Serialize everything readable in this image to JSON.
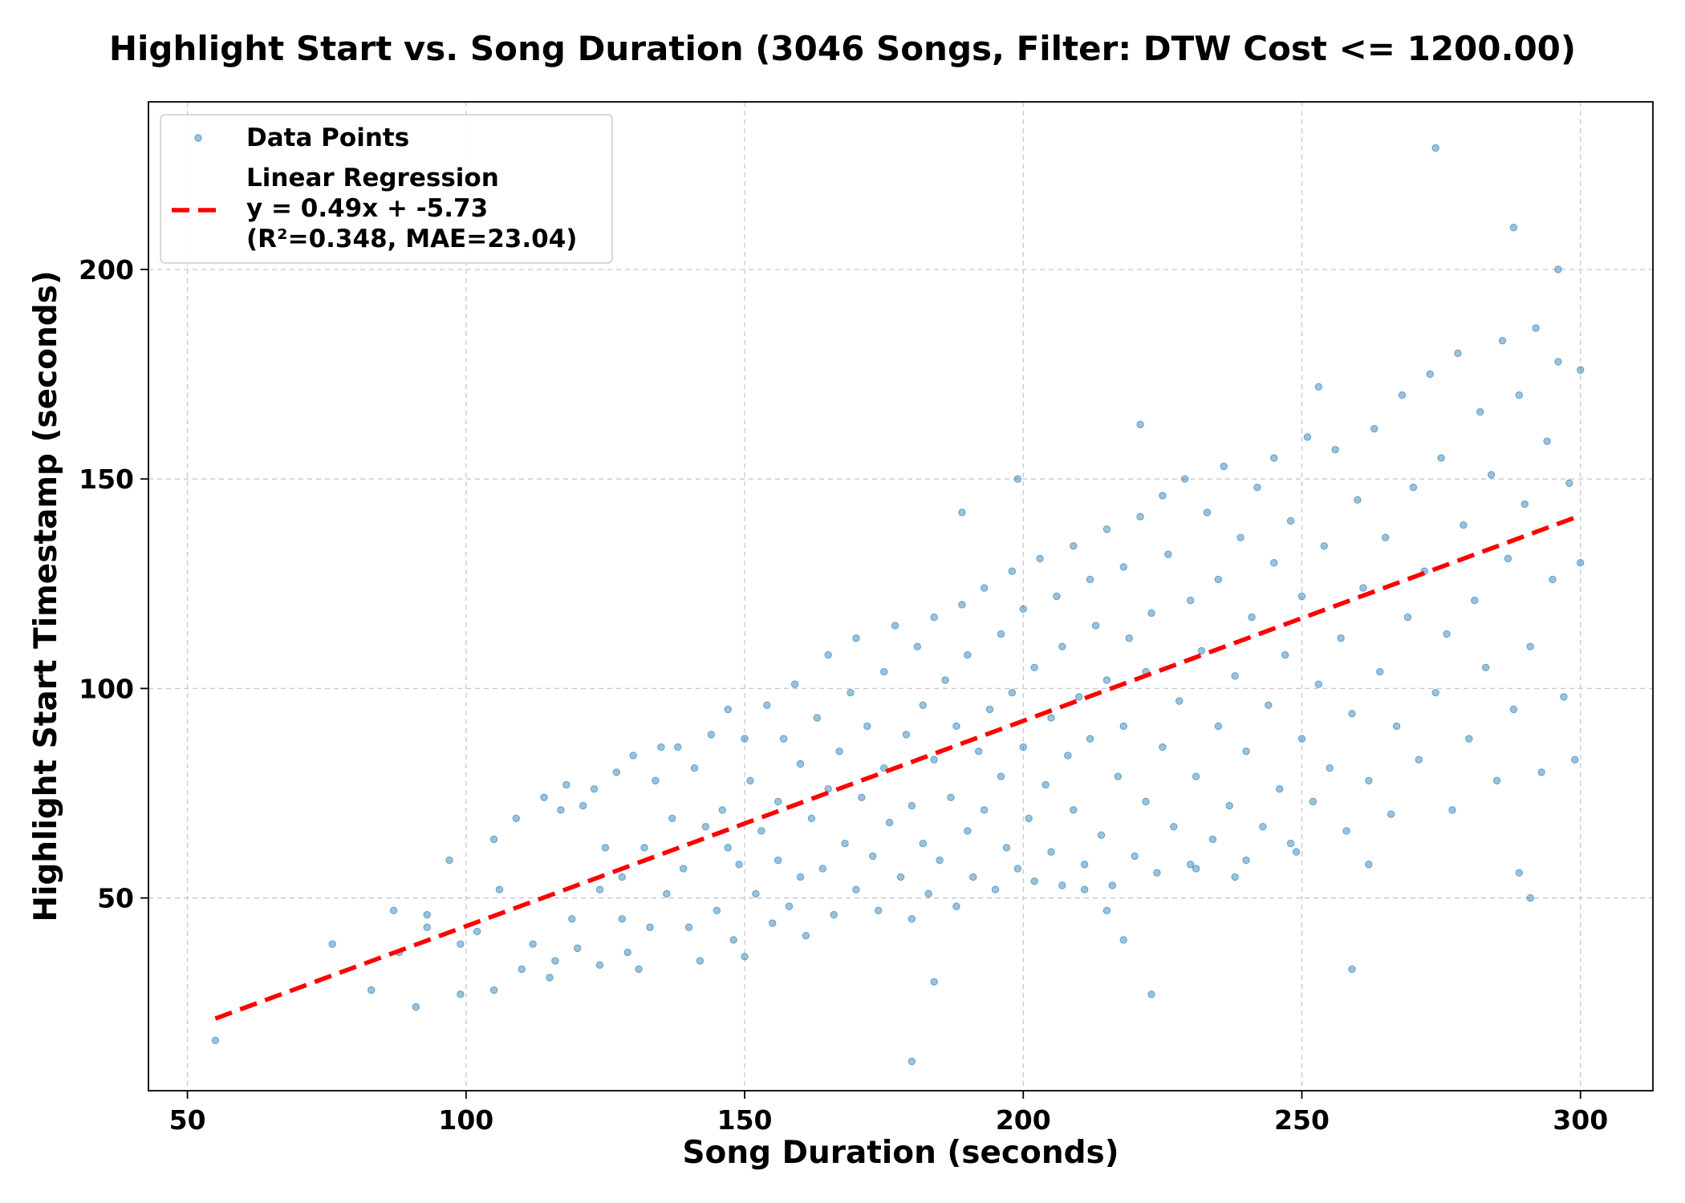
{
  "chart_data": {
    "type": "scatter",
    "title": "Highlight Start vs. Song Duration (3046 Songs, Filter: DTW Cost <= 1200.00)",
    "xlabel": "Song Duration (seconds)",
    "ylabel": "Highlight Start Timestamp (seconds)",
    "xlim": [
      43,
      313
    ],
    "ylim": [
      4,
      240
    ],
    "xticks": [
      50,
      100,
      150,
      200,
      250,
      300
    ],
    "yticks": [
      50,
      100,
      150,
      200
    ],
    "grid": true,
    "legend_position": "top-left",
    "colors": {
      "points": "#1f77b4",
      "regression": "#ff0000"
    },
    "legend": [
      {
        "label": "Data Points"
      },
      {
        "label": "Linear Regression",
        "extra_lines": [
          "y = 0.49x + -5.73",
          "(R²=0.348, MAE=23.04)"
        ]
      }
    ],
    "series": [
      {
        "name": "Data Points",
        "points": [
          [
            55,
            16
          ],
          [
            76,
            39
          ],
          [
            83,
            28
          ],
          [
            87,
            47
          ],
          [
            88,
            37
          ],
          [
            91,
            24
          ],
          [
            93,
            46
          ],
          [
            93,
            43
          ],
          [
            97,
            59
          ],
          [
            99,
            27
          ],
          [
            99,
            39
          ],
          [
            102,
            42
          ],
          [
            105,
            28
          ],
          [
            105,
            64
          ],
          [
            106,
            52
          ],
          [
            109,
            69
          ],
          [
            110,
            33
          ],
          [
            112,
            39
          ],
          [
            114,
            74
          ],
          [
            115,
            31
          ],
          [
            116,
            35
          ],
          [
            117,
            71
          ],
          [
            118,
            77
          ],
          [
            119,
            45
          ],
          [
            120,
            38
          ],
          [
            121,
            72
          ],
          [
            123,
            76
          ],
          [
            124,
            52
          ],
          [
            124,
            34
          ],
          [
            125,
            62
          ],
          [
            127,
            80
          ],
          [
            128,
            45
          ],
          [
            128,
            55
          ],
          [
            129,
            37
          ],
          [
            130,
            84
          ],
          [
            131,
            33
          ],
          [
            132,
            62
          ],
          [
            133,
            43
          ],
          [
            134,
            78
          ],
          [
            135,
            86
          ],
          [
            136,
            51
          ],
          [
            137,
            69
          ],
          [
            138,
            86
          ],
          [
            139,
            57
          ],
          [
            140,
            43
          ],
          [
            141,
            81
          ],
          [
            142,
            35
          ],
          [
            143,
            67
          ],
          [
            144,
            89
          ],
          [
            145,
            47
          ],
          [
            146,
            71
          ],
          [
            147,
            62
          ],
          [
            147,
            95
          ],
          [
            148,
            40
          ],
          [
            149,
            58
          ],
          [
            150,
            88
          ],
          [
            150,
            36
          ],
          [
            151,
            78
          ],
          [
            152,
            51
          ],
          [
            153,
            66
          ],
          [
            154,
            96
          ],
          [
            155,
            44
          ],
          [
            156,
            73
          ],
          [
            156,
            59
          ],
          [
            157,
            88
          ],
          [
            158,
            48
          ],
          [
            159,
            101
          ],
          [
            160,
            55
          ],
          [
            160,
            82
          ],
          [
            161,
            41
          ],
          [
            162,
            69
          ],
          [
            163,
            93
          ],
          [
            164,
            57
          ],
          [
            165,
            76
          ],
          [
            165,
            108
          ],
          [
            166,
            46
          ],
          [
            167,
            85
          ],
          [
            168,
            63
          ],
          [
            169,
            99
          ],
          [
            170,
            52
          ],
          [
            170,
            112
          ],
          [
            171,
            74
          ],
          [
            172,
            91
          ],
          [
            173,
            60
          ],
          [
            174,
            47
          ],
          [
            175,
            104
          ],
          [
            175,
            81
          ],
          [
            176,
            68
          ],
          [
            177,
            115
          ],
          [
            178,
            55
          ],
          [
            179,
            89
          ],
          [
            180,
            45
          ],
          [
            180,
            72
          ],
          [
            181,
            110
          ],
          [
            182,
            63
          ],
          [
            182,
            96
          ],
          [
            183,
            51
          ],
          [
            184,
            83
          ],
          [
            184,
            117
          ],
          [
            185,
            59
          ],
          [
            186,
            102
          ],
          [
            187,
            74
          ],
          [
            188,
            48
          ],
          [
            188,
            91
          ],
          [
            189,
            120
          ],
          [
            190,
            66
          ],
          [
            190,
            108
          ],
          [
            191,
            55
          ],
          [
            192,
            85
          ],
          [
            193,
            124
          ],
          [
            193,
            71
          ],
          [
            194,
            95
          ],
          [
            195,
            52
          ],
          [
            196,
            113
          ],
          [
            196,
            79
          ],
          [
            197,
            62
          ],
          [
            198,
            128
          ],
          [
            198,
            99
          ],
          [
            199,
            57
          ],
          [
            200,
            86
          ],
          [
            200,
            119
          ],
          [
            201,
            69
          ],
          [
            202,
            105
          ],
          [
            202,
            54
          ],
          [
            203,
            131
          ],
          [
            204,
            77
          ],
          [
            205,
            93
          ],
          [
            205,
            61
          ],
          [
            206,
            122
          ],
          [
            207,
            110
          ],
          [
            207,
            53
          ],
          [
            208,
            84
          ],
          [
            209,
            134
          ],
          [
            209,
            71
          ],
          [
            210,
            98
          ],
          [
            211,
            58
          ],
          [
            212,
            126
          ],
          [
            212,
            88
          ],
          [
            213,
            115
          ],
          [
            214,
            65
          ],
          [
            215,
            138
          ],
          [
            215,
            102
          ],
          [
            216,
            53
          ],
          [
            217,
            79
          ],
          [
            218,
            129
          ],
          [
            218,
            91
          ],
          [
            219,
            112
          ],
          [
            220,
            60
          ],
          [
            221,
            141
          ],
          [
            222,
            73
          ],
          [
            222,
            104
          ],
          [
            223,
            118
          ],
          [
            224,
            56
          ],
          [
            225,
            146
          ],
          [
            225,
            86
          ],
          [
            226,
            132
          ],
          [
            227,
            67
          ],
          [
            228,
            97
          ],
          [
            229,
            150
          ],
          [
            230,
            121
          ],
          [
            230,
            58
          ],
          [
            231,
            79
          ],
          [
            232,
            109
          ],
          [
            233,
            142
          ],
          [
            234,
            64
          ],
          [
            235,
            91
          ],
          [
            235,
            126
          ],
          [
            236,
            153
          ],
          [
            237,
            72
          ],
          [
            238,
            103
          ],
          [
            239,
            136
          ],
          [
            240,
            59
          ],
          [
            240,
            85
          ],
          [
            241,
            117
          ],
          [
            242,
            148
          ],
          [
            243,
            67
          ],
          [
            244,
            96
          ],
          [
            245,
            130
          ],
          [
            245,
            155
          ],
          [
            246,
            76
          ],
          [
            247,
            108
          ],
          [
            248,
            140
          ],
          [
            249,
            61
          ],
          [
            250,
            88
          ],
          [
            250,
            122
          ],
          [
            251,
            160
          ],
          [
            252,
            73
          ],
          [
            253,
            101
          ],
          [
            254,
            134
          ],
          [
            255,
            81
          ],
          [
            256,
            157
          ],
          [
            257,
            112
          ],
          [
            258,
            66
          ],
          [
            259,
            94
          ],
          [
            260,
            145
          ],
          [
            261,
            124
          ],
          [
            262,
            78
          ],
          [
            263,
            162
          ],
          [
            264,
            104
          ],
          [
            265,
            136
          ],
          [
            266,
            70
          ],
          [
            267,
            91
          ],
          [
            268,
            170
          ],
          [
            269,
            117
          ],
          [
            270,
            148
          ],
          [
            271,
            83
          ],
          [
            272,
            128
          ],
          [
            273,
            175
          ],
          [
            274,
            99
          ],
          [
            275,
            155
          ],
          [
            276,
            113
          ],
          [
            277,
            71
          ],
          [
            278,
            180
          ],
          [
            279,
            139
          ],
          [
            280,
            88
          ],
          [
            281,
            121
          ],
          [
            282,
            166
          ],
          [
            283,
            105
          ],
          [
            284,
            151
          ],
          [
            285,
            78
          ],
          [
            286,
            183
          ],
          [
            287,
            131
          ],
          [
            288,
            95
          ],
          [
            289,
            170
          ],
          [
            290,
            144
          ],
          [
            291,
            110
          ],
          [
            292,
            186
          ],
          [
            293,
            80
          ],
          [
            294,
            159
          ],
          [
            295,
            126
          ],
          [
            296,
            178
          ],
          [
            297,
            98
          ],
          [
            298,
            149
          ],
          [
            299,
            83
          ],
          [
            300,
            176
          ],
          [
            300,
            130
          ],
          [
            180,
            11
          ],
          [
            184,
            30
          ],
          [
            218,
            40
          ],
          [
            223,
            27
          ],
          [
            259,
            33
          ],
          [
            274,
            229
          ],
          [
            288,
            210
          ],
          [
            296,
            200
          ],
          [
            289,
            56
          ],
          [
            291,
            50
          ],
          [
            199,
            150
          ],
          [
            189,
            142
          ],
          [
            221,
            163
          ],
          [
            253,
            172
          ],
          [
            215,
            47
          ],
          [
            238,
            55
          ],
          [
            262,
            58
          ],
          [
            248,
            63
          ],
          [
            231,
            57
          ],
          [
            211,
            52
          ]
        ]
      },
      {
        "name": "Linear Regression",
        "slope": 0.49,
        "intercept": -5.73,
        "x_range": [
          55,
          300
        ]
      }
    ]
  }
}
